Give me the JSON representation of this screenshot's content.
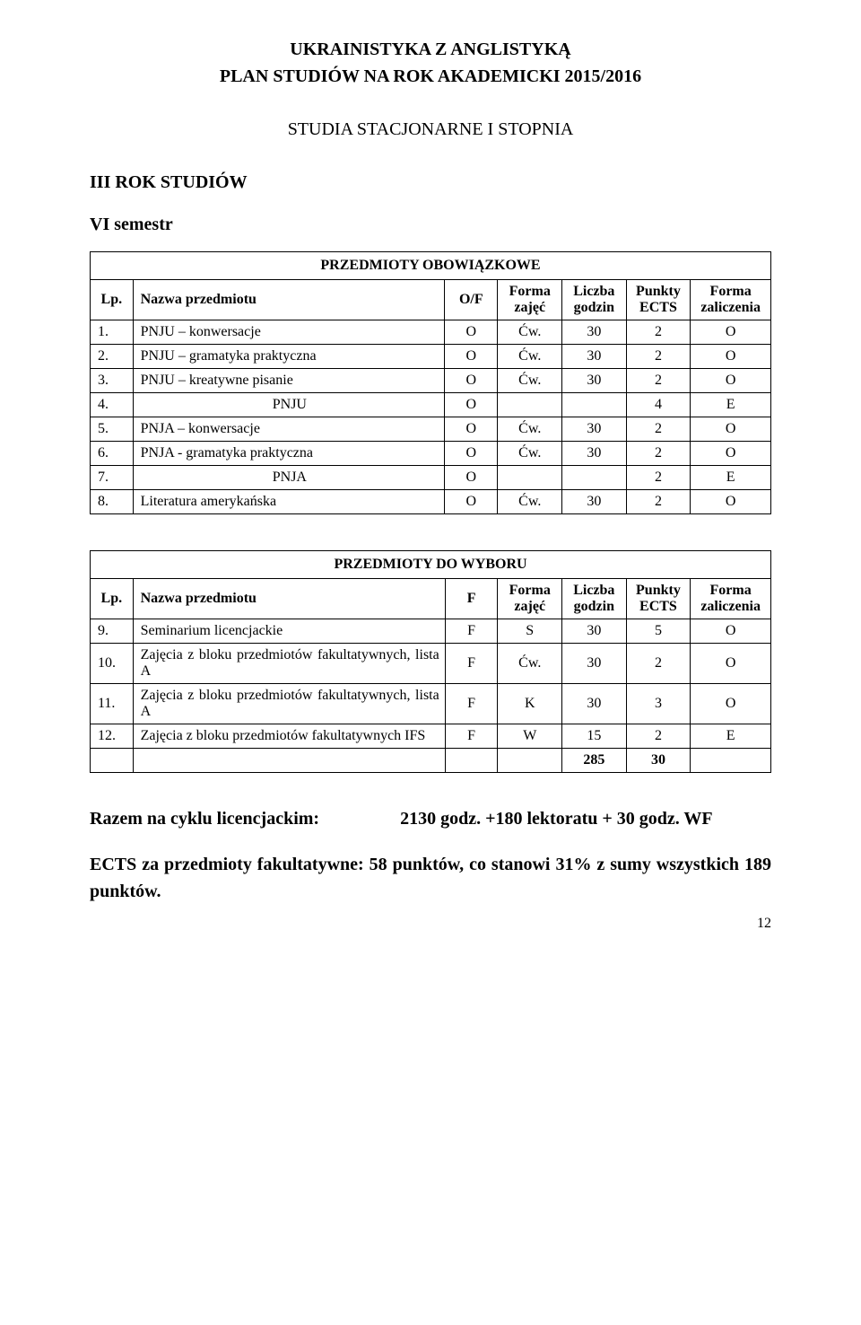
{
  "header": {
    "title": "UKRAINISTYKA Z ANGLISTYKĄ",
    "plan": "PLAN STUDIÓW NA ROK AKADEMICKI 2015/2016",
    "studies_type": "STUDIA STACJONARNE I STOPNIA",
    "year": "III ROK STUDIÓW",
    "semester": "VI semestr"
  },
  "table1": {
    "caption": "PRZEDMIOTY OBOWIĄZKOWE",
    "columns": {
      "lp": "Lp.",
      "name": "Nazwa przedmiotu",
      "of": "O/F",
      "forma_zajec": "Forma zajęć",
      "liczba_godzin": "Liczba godzin",
      "punkty_ects": "Punkty ECTS",
      "forma_zaliczenia": "Forma zaliczenia"
    },
    "rows": [
      {
        "lp": "1.",
        "name": "PNJU – konwersacje",
        "of": "O",
        "fz": "Ćw.",
        "lg": "30",
        "pe": "2",
        "fzal": "O"
      },
      {
        "lp": "2.",
        "name": "PNJU – gramatyka praktyczna",
        "of": "O",
        "fz": "Ćw.",
        "lg": "30",
        "pe": "2",
        "fzal": "O"
      },
      {
        "lp": "3.",
        "name": "PNJU – kreatywne pisanie",
        "of": "O",
        "fz": "Ćw.",
        "lg": "30",
        "pe": "2",
        "fzal": "O"
      },
      {
        "lp": "4.",
        "name": "PNJU",
        "of": "O",
        "fz": "",
        "lg": "",
        "pe": "4",
        "fzal": "E"
      },
      {
        "lp": "5.",
        "name": "PNJA – konwersacje",
        "of": "O",
        "fz": "Ćw.",
        "lg": "30",
        "pe": "2",
        "fzal": "O"
      },
      {
        "lp": "6.",
        "name": "PNJA - gramatyka praktyczna",
        "of": "O",
        "fz": "Ćw.",
        "lg": "30",
        "pe": "2",
        "fzal": "O"
      },
      {
        "lp": "7.",
        "name": "PNJA",
        "of": "O",
        "fz": "",
        "lg": "",
        "pe": "2",
        "fzal": "E"
      },
      {
        "lp": "8.",
        "name": "Literatura amerykańska",
        "of": "O",
        "fz": "Ćw.",
        "lg": "30",
        "pe": "2",
        "fzal": "O"
      }
    ]
  },
  "table2": {
    "caption": "PRZEDMIOTY DO WYBORU",
    "columns": {
      "lp": "Lp.",
      "name": "Nazwa przedmiotu",
      "of": "F",
      "forma_zajec": "Forma zajęć",
      "liczba_godzin": "Liczba godzin",
      "punkty_ects": "Punkty ECTS",
      "forma_zaliczenia": "Forma zaliczenia"
    },
    "rows": [
      {
        "lp": "9.",
        "name": "Seminarium licencjackie",
        "of": "F",
        "fz": "S",
        "lg": "30",
        "pe": "5",
        "fzal": "O"
      },
      {
        "lp": "10.",
        "name": "Zajęcia z bloku przedmiotów fakultatywnych, lista A",
        "of": "F",
        "fz": "Ćw.",
        "lg": "30",
        "pe": "2",
        "fzal": "O"
      },
      {
        "lp": "11.",
        "name": "Zajęcia z bloku przedmiotów fakultatywnych, lista A",
        "of": "F",
        "fz": "K",
        "lg": "30",
        "pe": "3",
        "fzal": "O"
      },
      {
        "lp": "12.",
        "name": "Zajęcia z bloku przedmiotów fakultatywnych IFS",
        "of": "F",
        "fz": "W",
        "lg": "15",
        "pe": "2",
        "fzal": "E"
      }
    ],
    "totals": {
      "lg": "285",
      "pe": "30"
    }
  },
  "summary": {
    "label": "Razem na cyklu licencjackim:",
    "value": "2130 godz. +180 lektoratu + 30 godz. WF",
    "ects_text": "ECTS za przedmioty fakultatywne: 58 punktów, co stanowi 31% z sumy wszystkich 189 punktów."
  },
  "page_number": "12"
}
